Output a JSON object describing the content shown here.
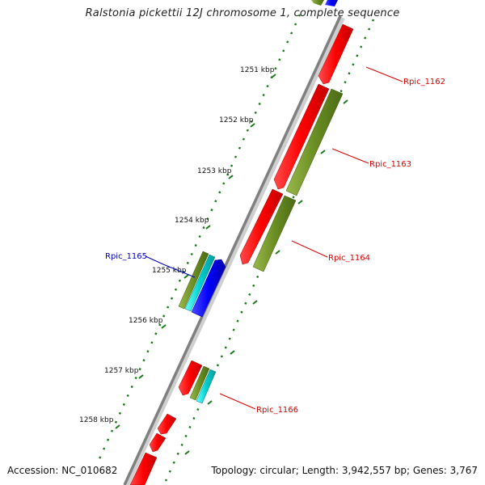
{
  "title": "Ralstonia pickettii 12J chromosome 1, complete sequence",
  "accession": "Accession: NC_010682",
  "topology": "Topology: circular; Length: 3,942,557 bp; Genes: 3,767",
  "kbp_labels": [
    "1251 kbp",
    "1252 kbp",
    "1253 kbp",
    "1254 kbp",
    "1255 kbp",
    "1256 kbp",
    "1257 kbp",
    "1258 kbp"
  ],
  "genes": [
    {
      "name": "Rpic_1162",
      "color": "#dd0000"
    },
    {
      "name": "Rpic_1163",
      "color": "#dd0000"
    },
    {
      "name": "Rpic_1164",
      "color": "#dd0000"
    },
    {
      "name": "Rpic_1165",
      "color": "#0000bb"
    },
    {
      "name": "Rpic_1166",
      "color": "#dd0000"
    }
  ],
  "colors": {
    "cds_red": "#ff0000",
    "gene_olive": "#6b8e23",
    "rna_cyan": "#00cccc",
    "feature_blue": "#0000ff",
    "backbone": "#888888",
    "tick_green": "#1a7a1a"
  }
}
